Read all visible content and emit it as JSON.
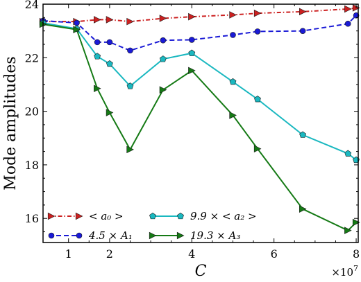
{
  "chart_data": {
    "type": "line",
    "xlabel": "C",
    "ylabel": "Mode amplitudes",
    "x_multiplier_label": "×10",
    "x_multiplier_exponent": "7",
    "xlim": [
      0.38,
      8.05
    ],
    "ylim": [
      15.1,
      24.0
    ],
    "x_ticks": [
      1,
      2,
      4,
      6,
      8
    ],
    "x_tick_labels": [
      "1",
      "2",
      "4",
      "6",
      "8"
    ],
    "y_ticks": [
      16,
      18,
      20,
      22,
      24
    ],
    "y_tick_labels": [
      "16",
      "18",
      "20",
      "22",
      "24"
    ],
    "legend_position": "lower-left",
    "series": [
      {
        "name": "< a0 >",
        "legend_label": "< a₀ >",
        "color": "#cc2020",
        "line": "dashdot",
        "marker": "triangle-right",
        "x": [
          0.38,
          1.2,
          1.7,
          2.0,
          2.5,
          3.3,
          4.0,
          5.0,
          5.6,
          6.7,
          7.8,
          8.0
        ],
        "y": [
          23.35,
          23.35,
          23.42,
          23.42,
          23.35,
          23.47,
          23.53,
          23.6,
          23.66,
          23.72,
          23.82,
          23.86
        ]
      },
      {
        "name": "4.5 × A1",
        "legend_label": "4.5 × A₁",
        "color": "#1a1ad6",
        "line": "dashed",
        "marker": "circle",
        "x": [
          0.38,
          1.2,
          1.7,
          2.0,
          2.5,
          3.3,
          4.0,
          5.0,
          5.6,
          6.7,
          7.8,
          8.0
        ],
        "y": [
          23.38,
          23.3,
          22.58,
          22.58,
          22.27,
          22.65,
          22.67,
          22.85,
          22.98,
          23.0,
          23.27,
          23.58
        ]
      },
      {
        "name": "9.9 × < a2 >",
        "legend_label": "9.9 × < a₂ >",
        "color": "#1ab8c0",
        "line": "solid",
        "marker": "pentagon",
        "x": [
          0.38,
          1.2,
          1.7,
          2.0,
          2.5,
          3.3,
          4.0,
          5.0,
          5.6,
          6.7,
          7.8,
          8.0
        ],
        "y": [
          23.3,
          23.08,
          22.05,
          21.77,
          20.94,
          21.95,
          22.17,
          21.1,
          20.45,
          19.12,
          18.42,
          18.18
        ]
      },
      {
        "name": "19.3 × A3",
        "legend_label": "19.3 × A₃",
        "color": "#157a15",
        "line": "solid",
        "marker": "triangle-right",
        "x": [
          0.38,
          1.2,
          1.7,
          2.0,
          2.5,
          3.3,
          4.0,
          5.0,
          5.6,
          6.7,
          7.8,
          8.0
        ],
        "y": [
          23.25,
          23.05,
          20.85,
          19.95,
          18.57,
          20.8,
          21.52,
          19.85,
          18.6,
          16.35,
          15.55,
          15.85
        ]
      }
    ]
  }
}
